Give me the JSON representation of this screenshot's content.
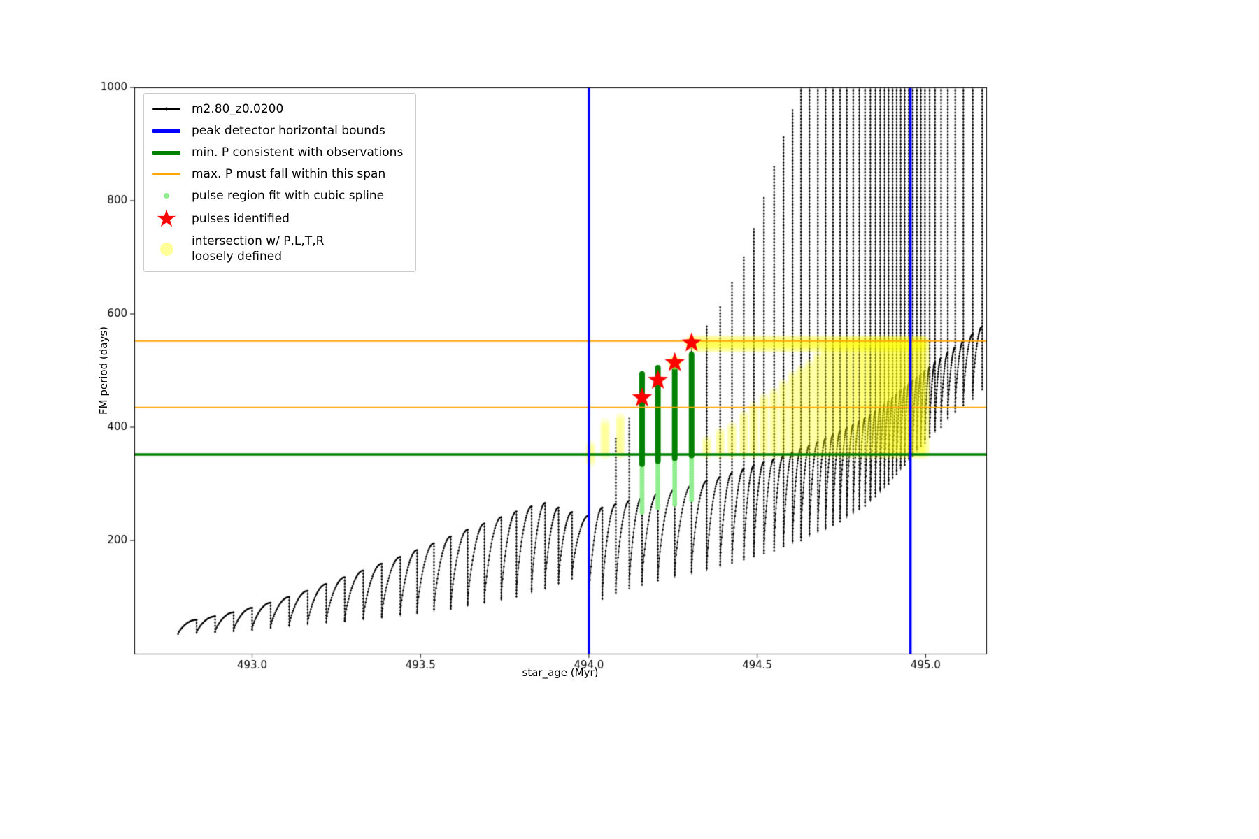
{
  "chart_data": {
    "type": "line",
    "xlabel": "star_age (Myr)",
    "ylabel": "FM period (days)",
    "xlim": [
      492.65,
      495.18
    ],
    "ylim": [
      0,
      1000
    ],
    "xticks": [
      493.0,
      493.5,
      494.0,
      494.5,
      495.0
    ],
    "xtick_labels": [
      "493.0",
      "493.5",
      "494.0",
      "494.5",
      "495.0"
    ],
    "yticks": [
      200,
      400,
      600,
      800,
      1000
    ],
    "ytick_labels": [
      "200",
      "400",
      "600",
      "800",
      "1000"
    ],
    "legend": [
      {
        "marker": "line-dot",
        "color": "#000000",
        "label": "m2.80_z0.0200"
      },
      {
        "marker": "thick-line",
        "color": "#0000ff",
        "label": "peak detector horizontal bounds"
      },
      {
        "marker": "thick-line",
        "color": "#008000",
        "label": "min. P consistent with observations"
      },
      {
        "marker": "line",
        "color": "#ffa500",
        "label": "max. P must fall within this span"
      },
      {
        "marker": "small-dot",
        "color": "#90ee90",
        "label": "pulse region fit with cubic spline"
      },
      {
        "marker": "star",
        "color": "#ff0000",
        "label": "pulses identified"
      },
      {
        "marker": "big-dot",
        "color": "rgba(255,255,0,0.4)",
        "label": "intersection w/ P,L,T,R\nloosely defined"
      }
    ],
    "vlines": {
      "color": "#0000ff",
      "width": 3.5,
      "x": [
        494.0,
        494.955
      ]
    },
    "hlines": [
      {
        "color": "#008000",
        "width": 3.5,
        "y": 352
      },
      {
        "color": "#ffa500",
        "width": 1.8,
        "y": 435
      },
      {
        "color": "#ffa500",
        "width": 1.8,
        "y": 552
      }
    ],
    "series_main": {
      "name": "m2.80_z0.0200",
      "color": "#000000",
      "cycles": [
        [
          492.78,
          35,
          60,
          60
        ],
        [
          492.835,
          37,
          66,
          66
        ],
        [
          492.89,
          39,
          73,
          73
        ],
        [
          492.945,
          41,
          81,
          81
        ],
        [
          493.0,
          44,
          90,
          90
        ],
        [
          493.055,
          47,
          100,
          100
        ],
        [
          493.11,
          50,
          111,
          111
        ],
        [
          493.165,
          53,
          123,
          123
        ],
        [
          493.22,
          56,
          135,
          135
        ],
        [
          493.275,
          59,
          147,
          147
        ],
        [
          493.33,
          62,
          159,
          159
        ],
        [
          493.385,
          66,
          171,
          171
        ],
        [
          493.44,
          70,
          183,
          183
        ],
        [
          493.49,
          74,
          195,
          195
        ],
        [
          493.54,
          78,
          207,
          207
        ],
        [
          493.59,
          83,
          219,
          219
        ],
        [
          493.64,
          88,
          230,
          230
        ],
        [
          493.69,
          93,
          241,
          241
        ],
        [
          493.74,
          99,
          251,
          251
        ],
        [
          493.785,
          106,
          260,
          260
        ],
        [
          493.83,
          113,
          266,
          266
        ],
        [
          493.87,
          121,
          258,
          258
        ],
        [
          493.91,
          130,
          250,
          250
        ],
        [
          493.95,
          140,
          244,
          244
        ],
        [
          494.0,
          95,
          258,
          258
        ],
        [
          494.04,
          104,
          264,
          380
        ],
        [
          494.08,
          113,
          270,
          415
        ],
        [
          494.12,
          121,
          277,
          455
        ],
        [
          494.158,
          128,
          284,
          485
        ],
        [
          494.205,
          134,
          291,
          516
        ],
        [
          494.255,
          140,
          298,
          550
        ],
        [
          494.305,
          146,
          305,
          578
        ],
        [
          494.35,
          152,
          312,
          612
        ],
        [
          494.39,
          158,
          319,
          655
        ],
        [
          494.425,
          164,
          326,
          700
        ],
        [
          494.46,
          170,
          332,
          750
        ],
        [
          494.49,
          176,
          338,
          805
        ],
        [
          494.52,
          182,
          344,
          860
        ],
        [
          494.55,
          188,
          350,
          912
        ],
        [
          494.578,
          194,
          356,
          960
        ],
        [
          494.605,
          200,
          362,
          1000
        ],
        [
          494.63,
          206,
          368,
          1000
        ],
        [
          494.655,
          212,
          374,
          1000
        ],
        [
          494.68,
          218,
          380,
          1000
        ],
        [
          494.703,
          225,
          386,
          1000
        ],
        [
          494.725,
          232,
          392,
          1000
        ],
        [
          494.746,
          239,
          398,
          1000
        ],
        [
          494.766,
          246,
          404,
          1000
        ],
        [
          494.785,
          253,
          410,
          1000
        ],
        [
          494.803,
          260,
          416,
          1000
        ],
        [
          494.82,
          268,
          422,
          1000
        ],
        [
          494.836,
          276,
          428,
          1000
        ],
        [
          494.851,
          284,
          434,
          1000
        ],
        [
          494.865,
          292,
          440,
          1000
        ],
        [
          494.878,
          300,
          446,
          1000
        ],
        [
          494.89,
          308,
          452,
          1000
        ],
        [
          494.902,
          316,
          458,
          1000
        ],
        [
          494.914,
          324,
          464,
          1000
        ],
        [
          494.926,
          332,
          470,
          1000
        ],
        [
          494.938,
          340,
          476,
          1000
        ],
        [
          494.95,
          348,
          482,
          1000
        ],
        [
          494.962,
          356,
          488,
          1000
        ],
        [
          494.974,
          364,
          494,
          1000
        ],
        [
          494.986,
          372,
          500,
          1000
        ],
        [
          494.998,
          380,
          506,
          1000
        ],
        [
          495.012,
          390,
          514,
          1000
        ],
        [
          495.028,
          400,
          522,
          1000
        ],
        [
          495.046,
          412,
          531,
          1000
        ],
        [
          495.066,
          424,
          541,
          1000
        ],
        [
          495.088,
          437,
          552,
          1000
        ],
        [
          495.112,
          450,
          564,
          1000
        ],
        [
          495.14,
          465,
          578,
          1000
        ]
      ]
    },
    "spline_regions": {
      "color_dark": "#008000",
      "color_light": "#90ee90",
      "bars": [
        {
          "x": 494.158,
          "light": [
            250,
            335
          ],
          "dark": [
            335,
            494
          ]
        },
        {
          "x": 494.205,
          "light": [
            258,
            340
          ],
          "dark": [
            340,
            505
          ]
        },
        {
          "x": 494.255,
          "light": [
            264,
            345
          ],
          "dark": [
            345,
            515
          ]
        },
        {
          "x": 494.305,
          "light": [
            272,
            350
          ],
          "dark": [
            350,
            528
          ]
        }
      ]
    },
    "pulses": {
      "color": "#ff0000",
      "points": [
        [
          494.158,
          452
        ],
        [
          494.205,
          483
        ],
        [
          494.255,
          514
        ],
        [
          494.305,
          549
        ]
      ]
    },
    "intersection": {
      "color": "rgba(255,255,0,0.14)",
      "columns": [
        [
          494.005,
          338,
          372
        ],
        [
          494.048,
          352,
          408
        ],
        [
          494.093,
          352,
          420
        ],
        [
          494.35,
          352,
          378
        ],
        [
          494.39,
          352,
          392
        ],
        [
          494.425,
          352,
          406
        ],
        [
          494.46,
          352,
          422
        ],
        [
          494.49,
          352,
          437
        ],
        [
          494.52,
          352,
          452
        ],
        [
          494.55,
          352,
          466
        ],
        [
          494.578,
          352,
          480
        ],
        [
          494.605,
          352,
          492
        ],
        [
          494.63,
          352,
          505
        ],
        [
          494.655,
          352,
          516
        ],
        [
          494.68,
          352,
          527
        ],
        [
          494.703,
          352,
          538
        ],
        [
          494.725,
          352,
          548
        ],
        [
          494.746,
          352,
          556
        ],
        [
          494.766,
          352,
          556
        ],
        [
          494.785,
          352,
          556
        ],
        [
          494.803,
          352,
          556
        ],
        [
          494.82,
          352,
          556
        ],
        [
          494.836,
          352,
          556
        ],
        [
          494.851,
          352,
          556
        ],
        [
          494.865,
          352,
          556
        ],
        [
          494.878,
          352,
          556
        ],
        [
          494.89,
          352,
          556
        ],
        [
          494.902,
          352,
          556
        ],
        [
          494.914,
          352,
          556
        ],
        [
          494.926,
          352,
          556
        ],
        [
          494.938,
          352,
          556
        ],
        [
          494.95,
          352,
          556
        ],
        [
          494.962,
          352,
          556
        ],
        [
          494.974,
          352,
          556
        ],
        [
          494.986,
          352,
          556
        ],
        [
          494.998,
          352,
          556
        ]
      ],
      "top_band": {
        "x0": 494.315,
        "x1": 495.0,
        "y0": 540,
        "y1": 556
      },
      "halos": [
        [
          494.255,
          514
        ],
        [
          494.305,
          549
        ]
      ]
    }
  }
}
